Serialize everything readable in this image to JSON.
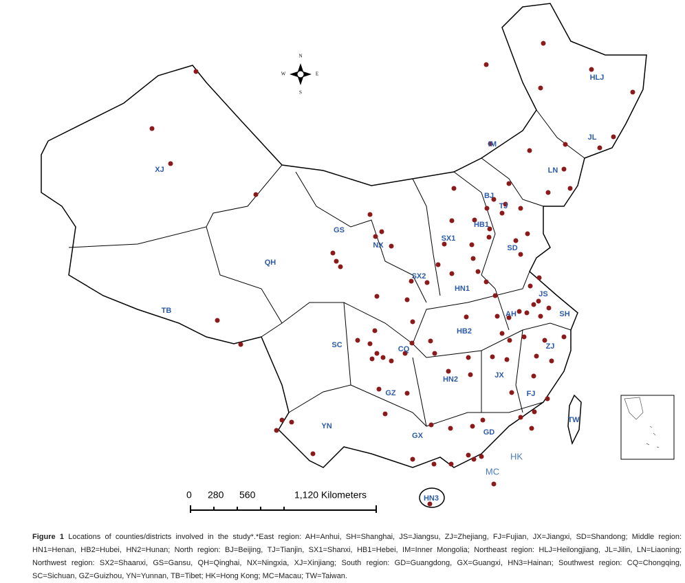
{
  "map": {
    "regions": [
      "XJ",
      "QH",
      "TB",
      "GS",
      "NX",
      "SX2",
      "SX1",
      "HB1",
      "BJ",
      "TJ",
      "IM",
      "HLJ",
      "JL",
      "LN",
      "SD",
      "JS",
      "SH",
      "AH",
      "HN1",
      "HB2",
      "CQ",
      "SC",
      "ZJ",
      "JX",
      "HN2",
      "GZ",
      "FJ",
      "YN",
      "GX",
      "GD",
      "HN3",
      "TW"
    ],
    "special": [
      "HK",
      "MC"
    ],
    "compass": [
      "N",
      "S",
      "W",
      "E"
    ],
    "scale_bar": [
      "0",
      "280",
      "560",
      "1,120 Kilometers"
    ]
  },
  "caption": {
    "label": "Figure 1",
    "text": "Locations of counties/districts involved in the study*.*East region: AH=Anhui, SH=Shanghai, JS=Jiangsu, ZJ=Zhejiang, FJ=Fujian, JX=Jiangxi, SD=Shandong; Middle region: HN1=Henan, HB2=Hubei, HN2=Hunan; North region: BJ=Beijing, TJ=Tianjin, SX1=Shanxi, HB1=Hebei, IM=Inner Mongolia; Northeast region: HLJ=Heilongjiang, JL=Jilin, LN=Liaoning; Northwest region: SX2=Shaanxi, GS=Gansu, QH=Qinghai, NX=Ningxia, XJ=Xinjiang; South region: GD=Guangdong, GX=Guangxi, HN3=Hainan; Southwest region: CQ=Chongqing, SC=Sichuan, GZ=Guizhou, YN=Yunnan, TB=Tibet; HK=Hong Kong; MC=Macau; TW=Taiwan."
  }
}
